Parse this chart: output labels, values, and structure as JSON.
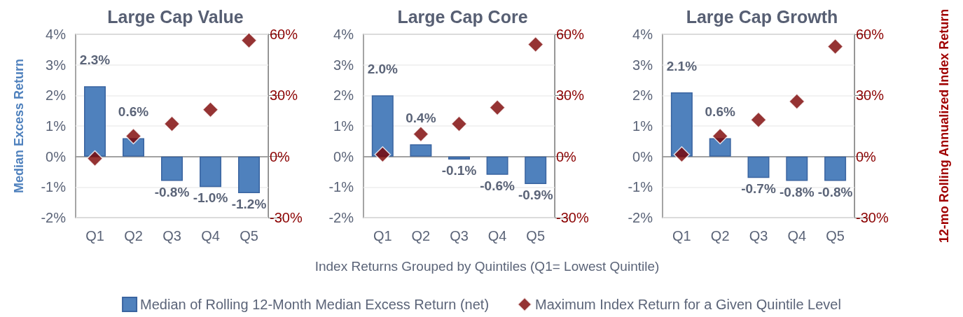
{
  "chart_data": [
    {
      "type": "bar",
      "title": "Large Cap Value",
      "ylabel": "Median Excess Return",
      "categories": [
        "Q1",
        "Q2",
        "Q3",
        "Q4",
        "Q5"
      ],
      "ylim": [
        -2,
        4
      ],
      "yticks": [
        {
          "value": -2,
          "label": "-2%"
        },
        {
          "value": -1,
          "label": "-1%"
        },
        {
          "value": 0,
          "label": "0%"
        },
        {
          "value": 1,
          "label": "1%"
        },
        {
          "value": 2,
          "label": "2%"
        },
        {
          "value": 3,
          "label": "3%"
        },
        {
          "value": 4,
          "label": "4%"
        }
      ],
      "y2lim": [
        -30,
        60
      ],
      "y2ticks": [
        {
          "value": -30,
          "label": "-30%"
        },
        {
          "value": 0,
          "label": "0%"
        },
        {
          "value": 30,
          "label": "30%"
        },
        {
          "value": 60,
          "label": "60%"
        }
      ],
      "grid": "y",
      "legend": "bottom",
      "series": [
        {
          "name": "Median of Rolling 12-Month Median Excess Return (net)",
          "color": "#4f81bd",
          "values": [
            2.3,
            0.6,
            -0.8,
            -1.0,
            -1.2
          ],
          "value_labels": [
            "2.3%",
            "0.6%",
            "-0.8%",
            "-1.0%",
            "-1.2%"
          ]
        },
        {
          "name": "Maximum Index Return for a Given Quintile Level",
          "type": "scatter",
          "axis": "y2",
          "marker": "diamond",
          "color": "#7b0000",
          "values": [
            -1,
            10,
            16,
            23,
            57
          ]
        }
      ]
    },
    {
      "type": "bar",
      "title": "Large Cap Core",
      "xlabel": "Index Returns Grouped by Quintiles (Q1= Lowest Quintile)",
      "categories": [
        "Q1",
        "Q2",
        "Q3",
        "Q4",
        "Q5"
      ],
      "ylim": [
        -2,
        4
      ],
      "yticks": [
        {
          "value": -2,
          "label": "-2%"
        },
        {
          "value": -1,
          "label": "-1%"
        },
        {
          "value": 0,
          "label": "0%"
        },
        {
          "value": 1,
          "label": "1%"
        },
        {
          "value": 2,
          "label": "2%"
        },
        {
          "value": 3,
          "label": "3%"
        },
        {
          "value": 4,
          "label": "4%"
        }
      ],
      "y2lim": [
        -30,
        60
      ],
      "y2ticks": [
        {
          "value": -30,
          "label": "-30%"
        },
        {
          "value": 0,
          "label": "0%"
        },
        {
          "value": 30,
          "label": "30%"
        },
        {
          "value": 60,
          "label": "60%"
        }
      ],
      "grid": "y",
      "series": [
        {
          "color": "#4f81bd",
          "values": [
            2.0,
            0.4,
            -0.1,
            -0.6,
            -0.9
          ],
          "value_labels": [
            "2.0%",
            "0.4%",
            "-0.1%",
            "-0.6%",
            "-0.9%"
          ]
        },
        {
          "type": "scatter",
          "axis": "y2",
          "marker": "diamond",
          "color": "#7b0000",
          "values": [
            1,
            11,
            16,
            24,
            55
          ]
        }
      ]
    },
    {
      "type": "bar",
      "title": "Large Cap Growth",
      "y2label": "12-mo Rolling Annualized Index Return",
      "categories": [
        "Q1",
        "Q2",
        "Q3",
        "Q4",
        "Q5"
      ],
      "ylim": [
        -2,
        4
      ],
      "yticks": [
        {
          "value": -2,
          "label": "-2%"
        },
        {
          "value": -1,
          "label": "-1%"
        },
        {
          "value": 0,
          "label": "0%"
        },
        {
          "value": 1,
          "label": "1%"
        },
        {
          "value": 2,
          "label": "2%"
        },
        {
          "value": 3,
          "label": "3%"
        },
        {
          "value": 4,
          "label": "4%"
        }
      ],
      "y2lim": [
        -30,
        60
      ],
      "y2ticks": [
        {
          "value": -30,
          "label": "-30%"
        },
        {
          "value": 0,
          "label": "0%"
        },
        {
          "value": 30,
          "label": "30%"
        },
        {
          "value": 60,
          "label": "60%"
        }
      ],
      "grid": "y",
      "series": [
        {
          "color": "#4f81bd",
          "values": [
            2.1,
            0.6,
            -0.7,
            -0.8,
            -0.8
          ],
          "value_labels": [
            "2.1%",
            "0.6%",
            "-0.7%",
            "-0.8%",
            "-0.8%"
          ]
        },
        {
          "type": "scatter",
          "axis": "y2",
          "marker": "diamond",
          "color": "#7b0000",
          "values": [
            1,
            10,
            18,
            27,
            54
          ]
        }
      ]
    }
  ]
}
